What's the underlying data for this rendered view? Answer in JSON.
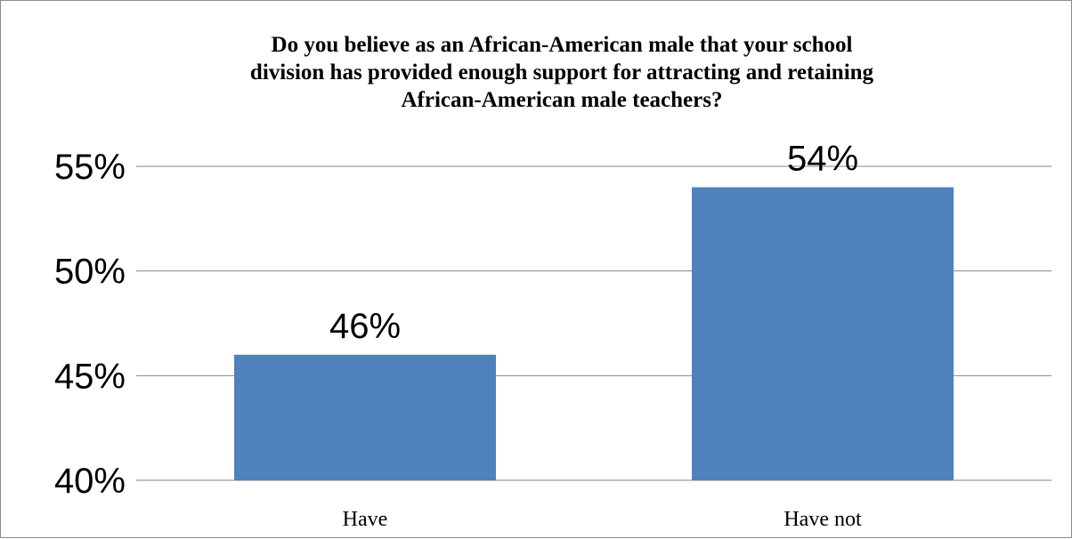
{
  "chart_data": {
    "type": "bar",
    "title_lines": [
      "Do you believe as an African-American male that your school",
      "division has provided enough support for attracting and retaining",
      "African-American male teachers?"
    ],
    "categories": [
      "Have",
      "Have not"
    ],
    "values": [
      46,
      54
    ],
    "value_labels": [
      "46%",
      "54%"
    ],
    "yticks": [
      40,
      45,
      50,
      55
    ],
    "ytick_labels": [
      "40%",
      "45%",
      "50%",
      "55%"
    ],
    "ylim": [
      40,
      55
    ],
    "grid": true,
    "legend": "none",
    "colors": {
      "bar": "#4f81bd",
      "grid": "#868686",
      "text": "#000000"
    }
  }
}
